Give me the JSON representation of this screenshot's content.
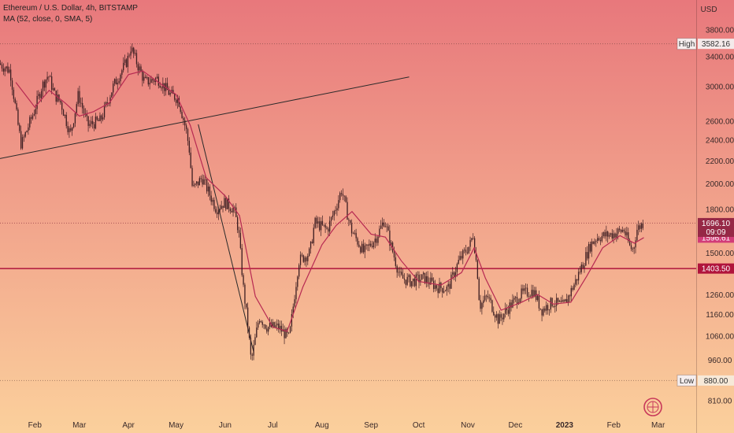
{
  "chart_data": {
    "type": "candlestick",
    "title": "Ethereum / U.S. Dollar, 4h, BITSTAMP",
    "indicator": "MA (52, close, 0, SMA, 5)",
    "y_unit": "USD",
    "y_scale": "log",
    "ylim": [
      760,
      4300
    ],
    "y_ticks": [
      810,
      880,
      960,
      1060,
      1160,
      1260,
      1500,
      1800,
      2000,
      2200,
      2400,
      2600,
      3000,
      3400,
      3800
    ],
    "x_ticks": [
      "Feb",
      "Mar",
      "Apr",
      "May",
      "Jun",
      "Jul",
      "Aug",
      "Sep",
      "Oct",
      "Nov",
      "Dec",
      "2023",
      "Feb",
      "Mar"
    ],
    "x_range": [
      "2022-01-10",
      "2023-03-25"
    ],
    "x_tick_dates": [
      "2022-02-01",
      "2022-03-01",
      "2022-04-01",
      "2022-05-01",
      "2022-06-01",
      "2022-07-01",
      "2022-08-01",
      "2022-09-01",
      "2022-10-01",
      "2022-11-01",
      "2022-12-01",
      "2023-01-01",
      "2023-02-01",
      "2023-03-01"
    ],
    "price_path": [
      [
        "2022-01-10",
        3300
      ],
      [
        "2022-01-17",
        3200
      ],
      [
        "2022-01-22",
        2550
      ],
      [
        "2022-01-24",
        2350
      ],
      [
        "2022-02-01",
        2700
      ],
      [
        "2022-02-06",
        3000
      ],
      [
        "2022-02-10",
        3150
      ],
      [
        "2022-02-14",
        2900
      ],
      [
        "2022-02-18",
        2800
      ],
      [
        "2022-02-24",
        2450
      ],
      [
        "2022-03-01",
        2900
      ],
      [
        "2022-03-07",
        2550
      ],
      [
        "2022-03-15",
        2600
      ],
      [
        "2022-03-23",
        3000
      ],
      [
        "2022-04-01",
        3350
      ],
      [
        "2022-04-03",
        3530
      ],
      [
        "2022-04-08",
        3250
      ],
      [
        "2022-04-12",
        3050
      ],
      [
        "2022-04-20",
        3100
      ],
      [
        "2022-04-28",
        2900
      ],
      [
        "2022-05-03",
        2850
      ],
      [
        "2022-05-08",
        2500
      ],
      [
        "2022-05-10",
        2300
      ],
      [
        "2022-05-12",
        1950
      ],
      [
        "2022-05-18",
        2050
      ],
      [
        "2022-05-27",
        1800
      ],
      [
        "2022-06-01",
        1850
      ],
      [
        "2022-06-07",
        1800
      ],
      [
        "2022-06-10",
        1650
      ],
      [
        "2022-06-13",
        1300
      ],
      [
        "2022-06-16",
        1100
      ],
      [
        "2022-06-18",
        950
      ],
      [
        "2022-06-23",
        1150
      ],
      [
        "2022-06-28",
        1100
      ],
      [
        "2022-07-05",
        1100
      ],
      [
        "2022-07-12",
        1050
      ],
      [
        "2022-07-18",
        1450
      ],
      [
        "2022-07-25",
        1500
      ],
      [
        "2022-07-28",
        1700
      ],
      [
        "2022-08-05",
        1650
      ],
      [
        "2022-08-10",
        1800
      ],
      [
        "2022-08-14",
        1950
      ],
      [
        "2022-08-20",
        1650
      ],
      [
        "2022-08-28",
        1500
      ],
      [
        "2022-09-05",
        1600
      ],
      [
        "2022-09-10",
        1720
      ],
      [
        "2022-09-14",
        1550
      ],
      [
        "2022-09-20",
        1350
      ],
      [
        "2022-09-27",
        1330
      ],
      [
        "2022-10-05",
        1350
      ],
      [
        "2022-10-13",
        1300
      ],
      [
        "2022-10-20",
        1290
      ],
      [
        "2022-10-27",
        1450
      ],
      [
        "2022-11-03",
        1550
      ],
      [
        "2022-11-05",
        1620
      ],
      [
        "2022-11-08",
        1350
      ],
      [
        "2022-11-09",
        1200
      ],
      [
        "2022-11-14",
        1250
      ],
      [
        "2022-11-21",
        1130
      ],
      [
        "2022-11-28",
        1200
      ],
      [
        "2022-12-05",
        1260
      ],
      [
        "2022-12-13",
        1280
      ],
      [
        "2022-12-18",
        1180
      ],
      [
        "2022-12-25",
        1220
      ],
      [
        "2023-01-01",
        1200
      ],
      [
        "2023-01-08",
        1320
      ],
      [
        "2023-01-13",
        1430
      ],
      [
        "2023-01-18",
        1550
      ],
      [
        "2023-01-22",
        1600
      ],
      [
        "2023-02-01",
        1620
      ],
      [
        "2023-02-08",
        1650
      ],
      [
        "2023-02-12",
        1530
      ],
      [
        "2023-02-14",
        1520
      ],
      [
        "2023-02-16",
        1650
      ],
      [
        "2023-02-20",
        1696
      ]
    ],
    "ma_path": [
      [
        "2022-01-20",
        3050
      ],
      [
        "2022-02-01",
        2750
      ],
      [
        "2022-02-10",
        2950
      ],
      [
        "2022-02-20",
        2800
      ],
      [
        "2022-03-01",
        2650
      ],
      [
        "2022-03-10",
        2700
      ],
      [
        "2022-03-20",
        2800
      ],
      [
        "2022-04-01",
        3150
      ],
      [
        "2022-04-10",
        3200
      ],
      [
        "2022-04-20",
        3050
      ],
      [
        "2022-05-01",
        2900
      ],
      [
        "2022-05-10",
        2550
      ],
      [
        "2022-05-20",
        2050
      ],
      [
        "2022-06-01",
        1900
      ],
      [
        "2022-06-10",
        1750
      ],
      [
        "2022-06-20",
        1250
      ],
      [
        "2022-07-01",
        1100
      ],
      [
        "2022-07-10",
        1080
      ],
      [
        "2022-07-20",
        1300
      ],
      [
        "2022-08-01",
        1550
      ],
      [
        "2022-08-10",
        1680
      ],
      [
        "2022-08-20",
        1780
      ],
      [
        "2022-09-01",
        1620
      ],
      [
        "2022-09-10",
        1600
      ],
      [
        "2022-09-20",
        1450
      ],
      [
        "2022-10-01",
        1330
      ],
      [
        "2022-10-15",
        1310
      ],
      [
        "2022-10-28",
        1380
      ],
      [
        "2022-11-05",
        1530
      ],
      [
        "2022-11-12",
        1350
      ],
      [
        "2022-11-22",
        1180
      ],
      [
        "2022-12-05",
        1220
      ],
      [
        "2022-12-15",
        1260
      ],
      [
        "2022-12-25",
        1210
      ],
      [
        "2023-01-05",
        1220
      ],
      [
        "2023-01-15",
        1360
      ],
      [
        "2023-01-25",
        1530
      ],
      [
        "2023-02-05",
        1610
      ],
      [
        "2023-02-14",
        1560
      ],
      [
        "2023-02-20",
        1596.61
      ]
    ],
    "annotations": {
      "high": {
        "label": "High",
        "value": "3582.16"
      },
      "low": {
        "label": "Low",
        "value": "880.00"
      },
      "last_price": {
        "value": "1696.10",
        "countdown": "09:09"
      },
      "ma_value": {
        "value": "1596.61"
      },
      "support": {
        "value": "1403.50"
      }
    },
    "trendlines": [
      {
        "from": [
          "2022-01-10",
          2220
        ],
        "to": [
          "2022-09-25",
          3120
        ]
      },
      {
        "from": [
          "2022-05-15",
          2560
        ],
        "to": [
          "2022-06-19",
          990
        ]
      }
    ]
  },
  "colors": {
    "bg_top": "#e8787c",
    "bg_bottom": "#fbd09c",
    "candle": "#3c1e22",
    "ma": "#b72a52",
    "support_line": "#b0143c",
    "support_label_bg": "#b0143c",
    "last_label_bg": "#962846",
    "ma_label_bg": "#d23c78",
    "trendline": "#2a2a2a"
  }
}
